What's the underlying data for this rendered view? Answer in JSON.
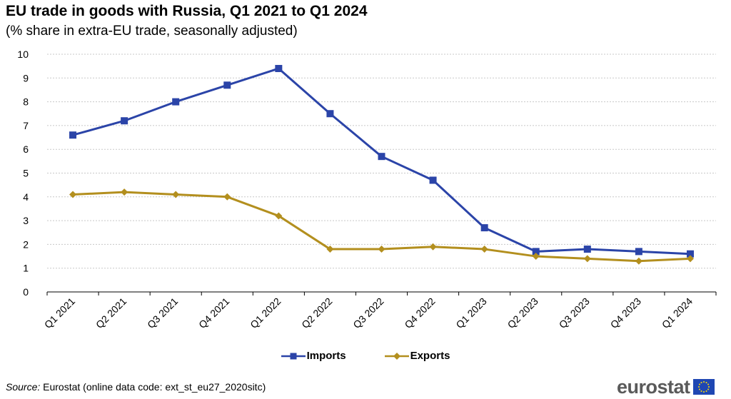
{
  "title": "EU trade in goods with Russia, Q1 2021 to Q1 2024",
  "subtitle": "(% share in extra-EU trade, seasonally adjusted)",
  "source": {
    "label": "Source:",
    "text": "Eurostat (online data code: ext_st_eu27_2020sitc)"
  },
  "logo": {
    "text": "eurostat"
  },
  "colors": {
    "imports": "#2b44a8",
    "exports": "#b38f1e",
    "grid": "#c8c8c8",
    "axis": "#000000"
  },
  "chart_data": {
    "type": "line",
    "title": "EU trade in goods with Russia, Q1 2021 to Q1 2024",
    "xlabel": "",
    "ylabel": "",
    "ylim": [
      0,
      10
    ],
    "yticks": [
      "0",
      "1",
      "2",
      "3",
      "4",
      "5",
      "6",
      "7",
      "8",
      "9",
      "10"
    ],
    "grid": true,
    "legend": "bottom-center",
    "categories": [
      "Q1 2021",
      "Q2 2021",
      "Q3 2021",
      "Q4 2021",
      "Q1 2022",
      "Q2 2022",
      "Q3 2022",
      "Q4 2022",
      "Q1 2023",
      "Q2 2023",
      "Q3 2023",
      "Q4 2023",
      "Q1 2024"
    ],
    "series": [
      {
        "name": "Imports",
        "marker": "square",
        "values": [
          6.6,
          7.2,
          8.0,
          8.7,
          9.4,
          7.5,
          5.7,
          4.7,
          2.7,
          1.7,
          1.8,
          1.7,
          1.6
        ]
      },
      {
        "name": "Exports",
        "marker": "diamond",
        "values": [
          4.1,
          4.2,
          4.1,
          4.0,
          3.2,
          1.8,
          1.8,
          1.9,
          1.8,
          1.5,
          1.4,
          1.3,
          1.4
        ]
      }
    ]
  }
}
